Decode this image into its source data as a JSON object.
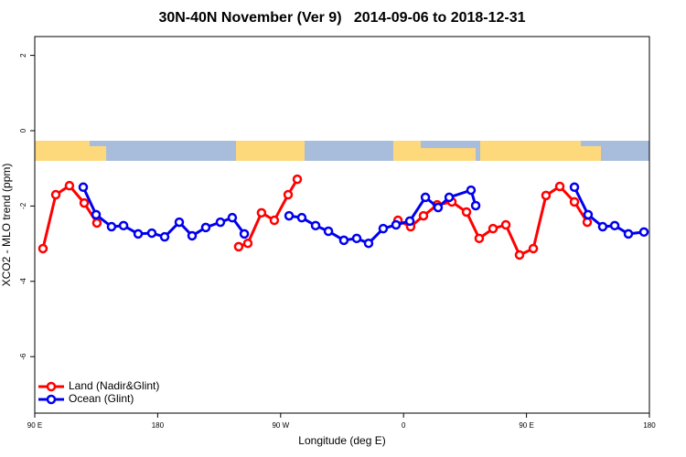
{
  "chart_data": {
    "type": "line",
    "title": "30N-40N November (Ver 9)   2014-09-06 to 2018-12-31",
    "xlabel": "Longitude (deg E)",
    "ylabel": "XCO2 - MLO trend (ppm)",
    "xlim": [
      90,
      540
    ],
    "xticks": [
      {
        "value": 90,
        "label": "90 E"
      },
      180,
      {
        "value": 270,
        "label": "90 W"
      },
      {
        "value": 360,
        "label": "0"
      },
      {
        "value": 450,
        "label": "90 E"
      },
      {
        "value": 540,
        "label": "180"
      }
    ],
    "ylim": [
      -7.5,
      2.5
    ],
    "yticks": [
      2,
      0,
      -2,
      -4,
      -6
    ],
    "legend": "bottom-left",
    "series": [
      {
        "name": "Land (Nadir&Glint)",
        "color": "#ff0000",
        "x": [
          96,
          105.4,
          115.4,
          126.2,
          135.5,
          null,
          239.3,
          246,
          256,
          265.4,
          275.5,
          282.2,
          null,
          355.9,
          365.2,
          374.6,
          384.6,
          395.4,
          406.1,
          415.4,
          425.5,
          434.9,
          444.9,
          455,
          464.3,
          474.4,
          485.1,
          494.5
        ],
        "values": [
          -3.13,
          -1.7,
          -1.46,
          -1.92,
          -2.45,
          null,
          -3.08,
          -2.99,
          -2.18,
          -2.38,
          -1.7,
          -1.29,
          null,
          -2.38,
          -2.55,
          -2.26,
          -1.97,
          -1.89,
          -2.16,
          -2.86,
          -2.6,
          -2.5,
          -3.3,
          -3.13,
          -1.72,
          -1.48,
          -1.89,
          -2.43
        ]
      },
      {
        "name": "Ocean (Glint)",
        "color": "#0000ee",
        "x": [
          125.5,
          134.9,
          146.2,
          155,
          165.7,
          175.7,
          185.1,
          195.8,
          205.2,
          215.2,
          225.9,
          234.6,
          243.4,
          null,
          276.2,
          285.5,
          295.6,
          305,
          316.3,
          325.7,
          334.4,
          345.1,
          354.5,
          364.6,
          376,
          385.3,
          393.4,
          409.4,
          412.8,
          null,
          485.1,
          495.1,
          505.8,
          514.6,
          524.6,
          536
        ],
        "values": [
          -1.5,
          -2.23,
          -2.55,
          -2.52,
          -2.74,
          -2.72,
          -2.82,
          -2.43,
          -2.79,
          -2.57,
          -2.43,
          -2.31,
          -2.74,
          null,
          -2.26,
          -2.31,
          -2.52,
          -2.67,
          -2.91,
          -2.86,
          -2.99,
          -2.6,
          -2.5,
          -2.4,
          -1.77,
          -2.04,
          -1.77,
          -1.58,
          -1.99,
          null,
          -1.5,
          -2.23,
          -2.55,
          -2.52,
          -2.74,
          -2.69
        ]
      }
    ]
  }
}
